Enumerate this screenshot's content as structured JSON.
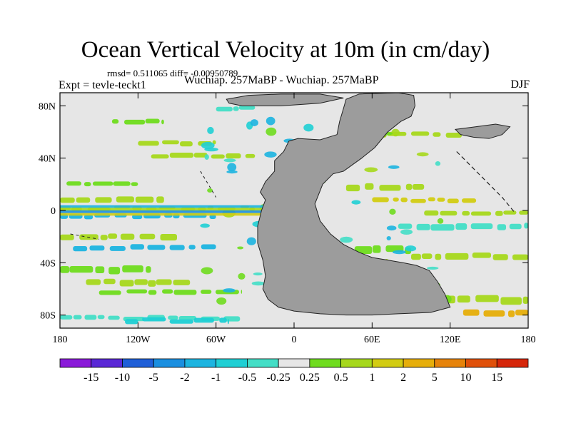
{
  "title": "Ocean Vertical Velocity at 10m (in cm/day)",
  "rmsd_text": "rmsd= 0.511065 diff= -0.00950789",
  "expt_text": "Expt = tevle-teckt1",
  "subtitle": "Wuchiap. 257MaBP - Wuchiap. 257MaBP",
  "season": "DJF",
  "chart_data": {
    "type": "heatmap",
    "projection": "cylindrical equidistant",
    "lon_range": [
      -180,
      180
    ],
    "lat_range": [
      -90,
      90
    ],
    "x_ticks": [
      {
        "value": -180,
        "label": "180"
      },
      {
        "value": -120,
        "label": "120W"
      },
      {
        "value": -60,
        "label": "60W"
      },
      {
        "value": 0,
        "label": "0"
      },
      {
        "value": 60,
        "label": "60E"
      },
      {
        "value": 120,
        "label": "120E"
      },
      {
        "value": 180,
        "label": "180"
      }
    ],
    "y_ticks": [
      {
        "value": 80,
        "label": "80N"
      },
      {
        "value": 40,
        "label": "40N"
      },
      {
        "value": 0,
        "label": "0"
      },
      {
        "value": -40,
        "label": "40S"
      },
      {
        "value": -80,
        "label": "80S"
      }
    ],
    "colorbar": {
      "labels": [
        "-15",
        "-10",
        "-5",
        "-2",
        "-1",
        "-0.5",
        "-0.25",
        "0.25",
        "0.5",
        "1",
        "2",
        "5",
        "10",
        "15"
      ],
      "colors": [
        "#8a19d9",
        "#5a28d6",
        "#1f5fd8",
        "#1a8fe0",
        "#1cb4e0",
        "#1fcfd4",
        "#43dec6",
        "#e6e6e6",
        "#6fdc1e",
        "#a6d81c",
        "#d2cc12",
        "#e6ae0a",
        "#e6830a",
        "#e0500a",
        "#d6260a"
      ]
    },
    "land_color": "#9c9c9c",
    "background_color": "#e6e6e6",
    "pattern": "zonal bands of positive/negative vertical velocity; strong alternation along the equator"
  }
}
